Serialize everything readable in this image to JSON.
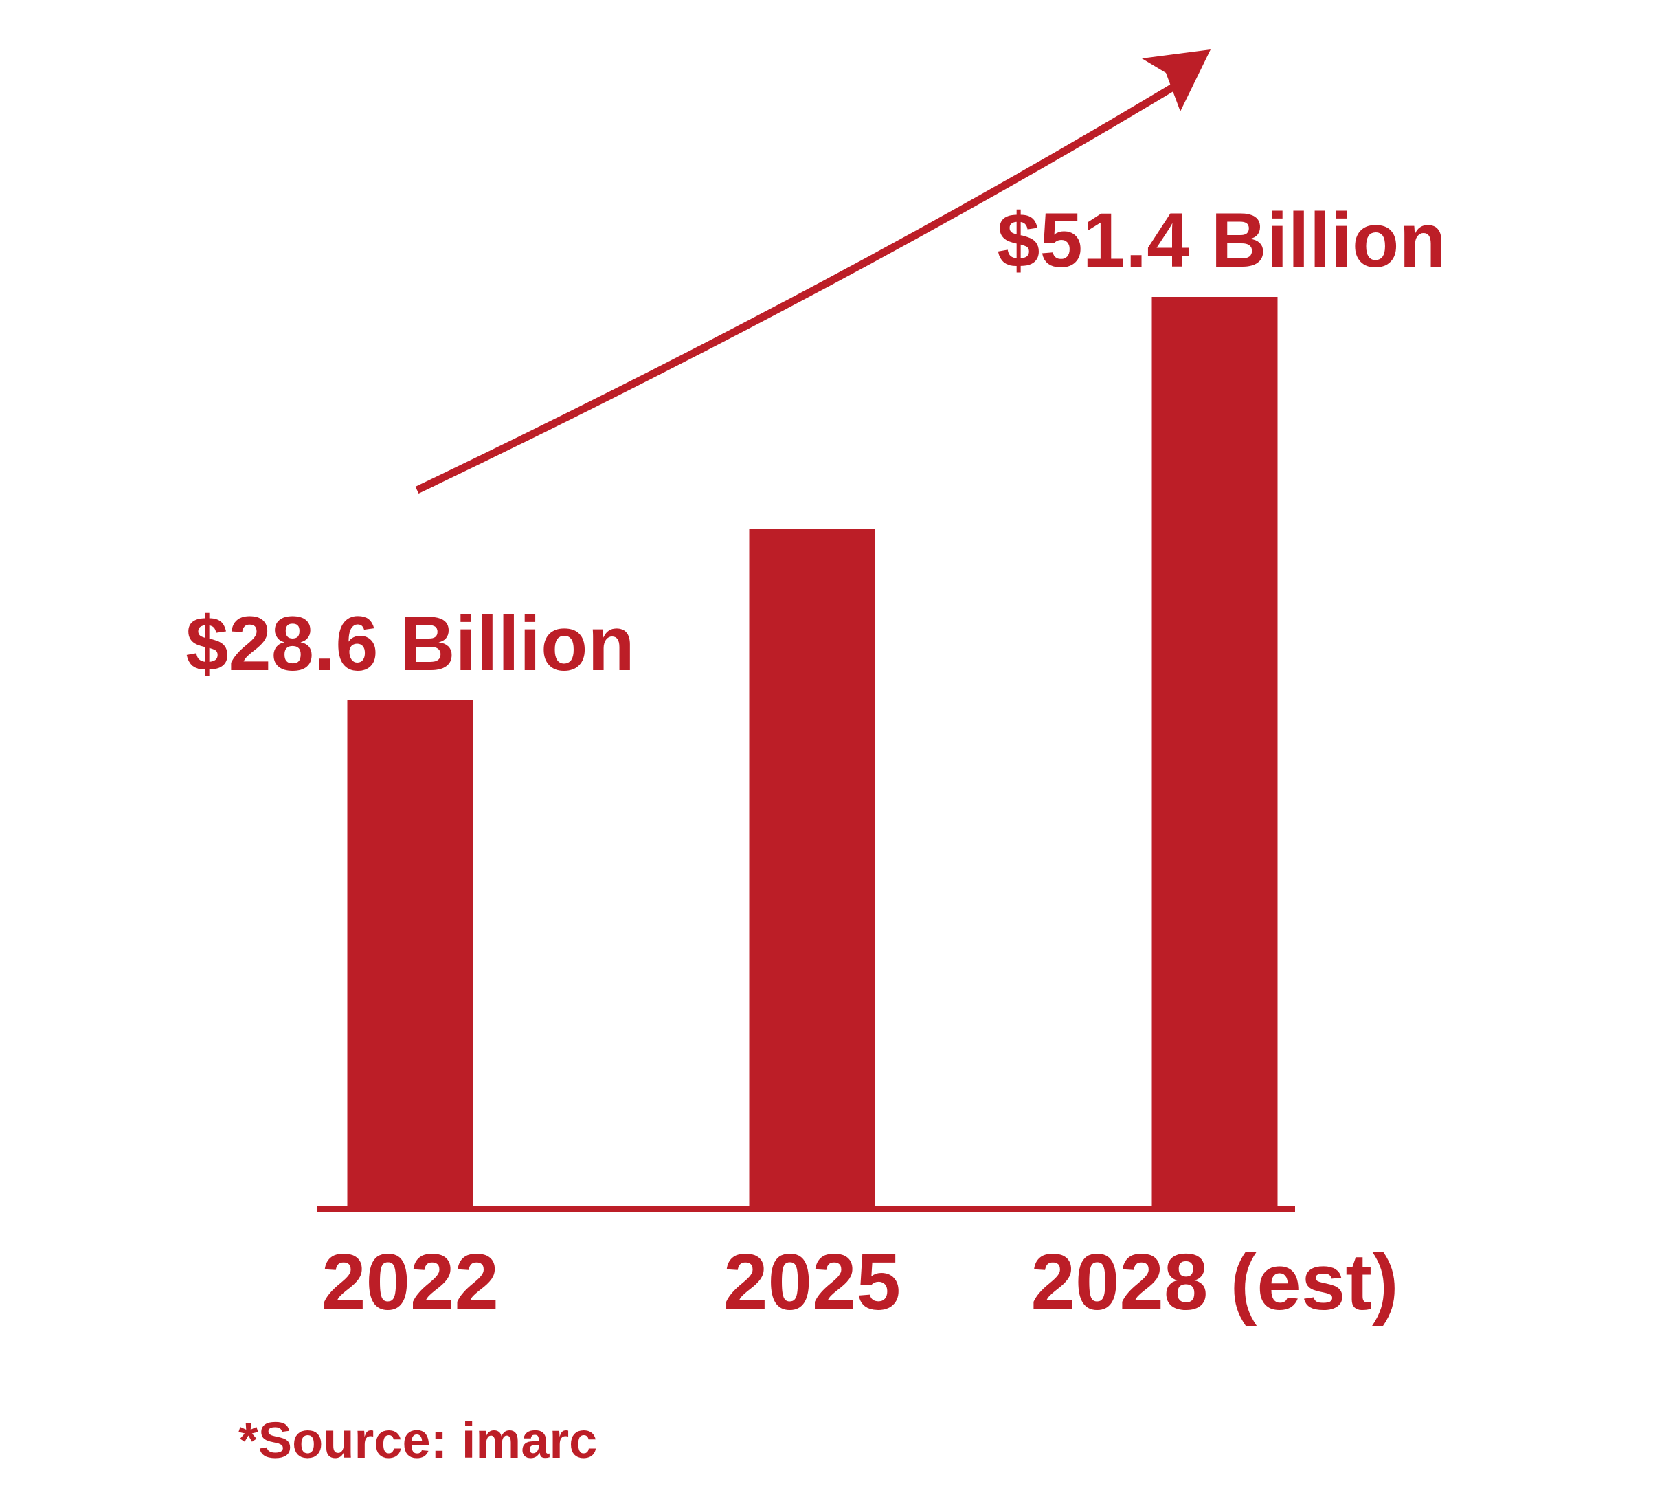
{
  "chart_data": {
    "type": "bar",
    "categories": [
      "2022",
      "2025",
      "2028 (est)"
    ],
    "values": [
      28.6,
      38.3,
      51.4
    ],
    "data_labels": [
      "$28.6 Billion",
      "",
      "$51.4 Billion"
    ],
    "unit": "Billion USD",
    "title": "",
    "xlabel": "",
    "ylabel": "",
    "ylim": [
      0,
      51.4
    ],
    "grid": false,
    "legend": "none",
    "trend_arrow": true,
    "colors": {
      "bar": "#bc1e27",
      "text": "#bc1e27",
      "axis": "#bc1e27",
      "background": "#ffffff"
    }
  },
  "footer": {
    "source": "*Source: imarc"
  }
}
